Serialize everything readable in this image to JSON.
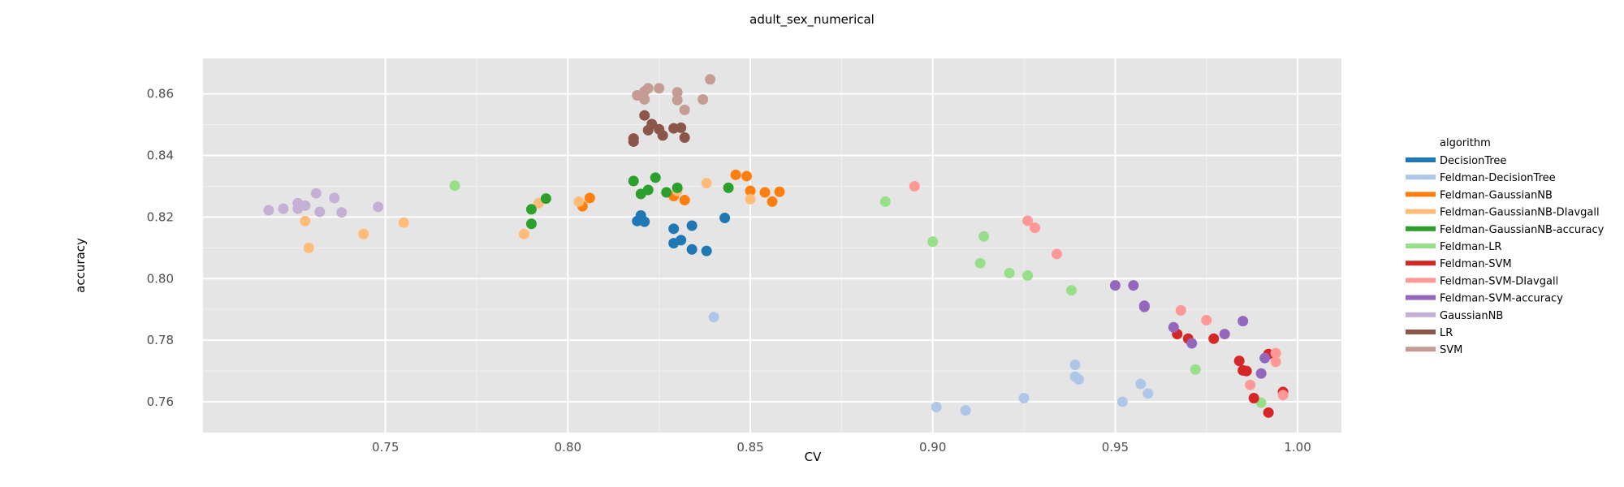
{
  "chart_data": {
    "type": "scatter",
    "title": "adult_sex_numerical",
    "xlabel": "CV",
    "ylabel": "accuracy",
    "xlim": [
      0.7,
      1.012
    ],
    "ylim": [
      0.75,
      0.8715
    ],
    "x_ticks": [
      0.75,
      0.8,
      0.85,
      0.9,
      0.95,
      1.0
    ],
    "x_tick_labels": [
      "0.75",
      "0.80",
      "0.85",
      "0.90",
      "0.95",
      "1.00"
    ],
    "y_ticks": [
      0.76,
      0.78,
      0.8,
      0.82,
      0.84,
      0.86
    ],
    "y_tick_labels": [
      "0.76",
      "0.78",
      "0.80",
      "0.82",
      "0.84",
      "0.86"
    ],
    "grid": true,
    "legend_position": "right",
    "legend_title": "algorithm",
    "series": [
      {
        "name": "DecisionTree",
        "color": "#1f77b4",
        "points": [
          [
            0.819,
            0.8187
          ],
          [
            0.82,
            0.8205
          ],
          [
            0.821,
            0.8185
          ],
          [
            0.829,
            0.8162
          ],
          [
            0.834,
            0.8172
          ],
          [
            0.843,
            0.8197
          ],
          [
            0.829,
            0.8115
          ],
          [
            0.831,
            0.8125
          ],
          [
            0.834,
            0.8095
          ],
          [
            0.838,
            0.809
          ]
        ]
      },
      {
        "name": "Feldman-DecisionTree",
        "color": "#aec7e8",
        "points": [
          [
            0.84,
            0.7875
          ],
          [
            0.901,
            0.7583
          ],
          [
            0.909,
            0.7572
          ],
          [
            0.925,
            0.7612
          ],
          [
            0.939,
            0.772
          ],
          [
            0.939,
            0.7682
          ],
          [
            0.94,
            0.7673
          ],
          [
            0.952,
            0.76
          ],
          [
            0.957,
            0.7658
          ],
          [
            0.959,
            0.7627
          ]
        ]
      },
      {
        "name": "Feldman-GaussianNB",
        "color": "#ff7f0e",
        "points": [
          [
            0.804,
            0.8235
          ],
          [
            0.806,
            0.8262
          ],
          [
            0.829,
            0.8268
          ],
          [
            0.832,
            0.8255
          ],
          [
            0.846,
            0.8337
          ],
          [
            0.849,
            0.8333
          ],
          [
            0.85,
            0.8285
          ],
          [
            0.854,
            0.828
          ],
          [
            0.856,
            0.825
          ],
          [
            0.858,
            0.8282
          ]
        ]
      },
      {
        "name": "Feldman-GaussianNB-DIavgall",
        "color": "#ffbb78",
        "points": [
          [
            0.728,
            0.8187
          ],
          [
            0.729,
            0.81
          ],
          [
            0.744,
            0.8145
          ],
          [
            0.755,
            0.8182
          ],
          [
            0.788,
            0.8145
          ],
          [
            0.792,
            0.8245
          ],
          [
            0.803,
            0.825
          ],
          [
            0.83,
            0.8285
          ],
          [
            0.838,
            0.831
          ],
          [
            0.85,
            0.8258
          ]
        ]
      },
      {
        "name": "Feldman-GaussianNB-accuracy",
        "color": "#2ca02c",
        "points": [
          [
            0.79,
            0.8225
          ],
          [
            0.79,
            0.8178
          ],
          [
            0.794,
            0.826
          ],
          [
            0.818,
            0.8317
          ],
          [
            0.82,
            0.8275
          ],
          [
            0.822,
            0.8288
          ],
          [
            0.824,
            0.8328
          ],
          [
            0.827,
            0.828
          ],
          [
            0.83,
            0.8295
          ],
          [
            0.844,
            0.8295
          ]
        ]
      },
      {
        "name": "Feldman-LR",
        "color": "#98df8a",
        "points": [
          [
            0.769,
            0.8302
          ],
          [
            0.887,
            0.825
          ],
          [
            0.9,
            0.812
          ],
          [
            0.913,
            0.805
          ],
          [
            0.914,
            0.8137
          ],
          [
            0.921,
            0.8018
          ],
          [
            0.926,
            0.801
          ],
          [
            0.938,
            0.7962
          ],
          [
            0.972,
            0.7705
          ],
          [
            0.99,
            0.7597
          ]
        ]
      },
      {
        "name": "Feldman-SVM",
        "color": "#d62728",
        "points": [
          [
            0.967,
            0.782
          ],
          [
            0.97,
            0.7805
          ],
          [
            0.977,
            0.7805
          ],
          [
            0.984,
            0.7733
          ],
          [
            0.985,
            0.7702
          ],
          [
            0.986,
            0.77
          ],
          [
            0.988,
            0.7612
          ],
          [
            0.992,
            0.7755
          ],
          [
            0.992,
            0.7565
          ],
          [
            0.996,
            0.7632
          ]
        ]
      },
      {
        "name": "Feldman-SVM-DIavgall",
        "color": "#ff9896",
        "points": [
          [
            0.895,
            0.83
          ],
          [
            0.926,
            0.8188
          ],
          [
            0.928,
            0.8165
          ],
          [
            0.934,
            0.808
          ],
          [
            0.968,
            0.7897
          ],
          [
            0.975,
            0.7865
          ],
          [
            0.987,
            0.7655
          ],
          [
            0.994,
            0.7758
          ],
          [
            0.994,
            0.773
          ],
          [
            0.996,
            0.7622
          ]
        ]
      },
      {
        "name": "Feldman-SVM-accuracy",
        "color": "#9467bd",
        "points": [
          [
            0.95,
            0.7978
          ],
          [
            0.955,
            0.7978
          ],
          [
            0.958,
            0.7908
          ],
          [
            0.958,
            0.7912
          ],
          [
            0.966,
            0.7842
          ],
          [
            0.971,
            0.779
          ],
          [
            0.98,
            0.782
          ],
          [
            0.985,
            0.7862
          ],
          [
            0.99,
            0.7692
          ],
          [
            0.991,
            0.7742
          ]
        ]
      },
      {
        "name": "GaussianNB",
        "color": "#c5b0d5",
        "points": [
          [
            0.718,
            0.8222
          ],
          [
            0.722,
            0.8227
          ],
          [
            0.726,
            0.8245
          ],
          [
            0.726,
            0.8227
          ],
          [
            0.728,
            0.8237
          ],
          [
            0.731,
            0.8277
          ],
          [
            0.732,
            0.8217
          ],
          [
            0.736,
            0.8262
          ],
          [
            0.738,
            0.8215
          ],
          [
            0.748,
            0.8233
          ]
        ]
      },
      {
        "name": "LR",
        "color": "#8c564b",
        "points": [
          [
            0.818,
            0.8445
          ],
          [
            0.818,
            0.8455
          ],
          [
            0.821,
            0.853
          ],
          [
            0.822,
            0.8482
          ],
          [
            0.823,
            0.8502
          ],
          [
            0.825,
            0.8485
          ],
          [
            0.826,
            0.8465
          ],
          [
            0.829,
            0.8488
          ],
          [
            0.831,
            0.849
          ],
          [
            0.832,
            0.8458
          ]
        ]
      },
      {
        "name": "SVM",
        "color": "#c49c94",
        "points": [
          [
            0.819,
            0.8595
          ],
          [
            0.821,
            0.8608
          ],
          [
            0.821,
            0.8582
          ],
          [
            0.822,
            0.8618
          ],
          [
            0.825,
            0.8618
          ],
          [
            0.83,
            0.8605
          ],
          [
            0.83,
            0.858
          ],
          [
            0.832,
            0.8548
          ],
          [
            0.837,
            0.8582
          ],
          [
            0.839,
            0.8647
          ]
        ]
      }
    ]
  }
}
